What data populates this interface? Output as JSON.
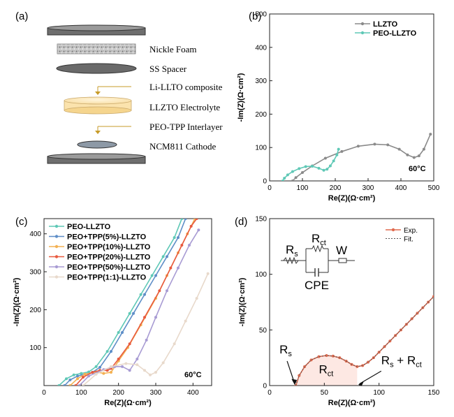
{
  "panel_labels": {
    "a": "(a)",
    "b": "(b)",
    "c": "(c)",
    "d": "(d)"
  },
  "schematic": {
    "layers": [
      {
        "label": "Nickle Foam"
      },
      {
        "label": "SS Spacer"
      },
      {
        "label": "Li-LLTO composite"
      },
      {
        "label": "LLZTO Electrolyte"
      },
      {
        "label": "PEO-TPP Interlayer"
      },
      {
        "label": "NCM811 Cathode"
      }
    ]
  },
  "chart_data": [
    {
      "panel": "(b)",
      "type": "line",
      "xlabel": "Re(Z)(Ω·cm²)",
      "ylabel": "-Im(Z)(Ω·cm²)",
      "xlim": [
        0,
        500
      ],
      "ylim": [
        0,
        500
      ],
      "xticks": [
        0,
        100,
        200,
        300,
        400,
        500
      ],
      "yticks": [
        0,
        100,
        200,
        300,
        400,
        500
      ],
      "legend_position": "top-right",
      "annotation": "60°C",
      "series": [
        {
          "name": "LLZTO",
          "color": "#8a8a8a",
          "x": [
            70,
            80,
            100,
            130,
            170,
            220,
            270,
            320,
            360,
            395,
            420,
            440,
            455,
            470,
            490
          ],
          "y": [
            0,
            10,
            25,
            45,
            68,
            88,
            104,
            110,
            108,
            95,
            78,
            70,
            75,
            95,
            140
          ]
        },
        {
          "name": "PEO-LLZTO",
          "color": "#5fc8b6",
          "x": [
            40,
            45,
            55,
            70,
            90,
            110,
            130,
            150,
            165,
            175,
            185,
            195,
            205,
            210
          ],
          "y": [
            0,
            8,
            18,
            28,
            37,
            43,
            44,
            38,
            32,
            35,
            45,
            60,
            78,
            95
          ]
        }
      ]
    },
    {
      "panel": "(c)",
      "type": "line",
      "xlabel": "Re(Z)(Ω·cm²)",
      "ylabel": "-Im(Z)(Ω·cm²)",
      "xlim": [
        0,
        450
      ],
      "ylim": [
        0,
        440
      ],
      "xticks": [
        0,
        100,
        200,
        300,
        400
      ],
      "yticks": [
        100,
        200,
        300,
        400
      ],
      "legend_position": "top-left",
      "annotation": "60°C",
      "series": [
        {
          "name": "PEO-LLZTO",
          "color": "#5fc8b6",
          "x": [
            40,
            60,
            80,
            100,
            120,
            140,
            170,
            200,
            230,
            260,
            290,
            320,
            350,
            370
          ],
          "y": [
            0,
            18,
            28,
            32,
            36,
            50,
            90,
            140,
            190,
            240,
            290,
            340,
            390,
            440
          ]
        },
        {
          "name": "PEO+TPP(5%)-LLZTO",
          "color": "#5e8ec7",
          "x": [
            55,
            70,
            90,
            110,
            130,
            150,
            180,
            210,
            240,
            270,
            300,
            330,
            360,
            380
          ],
          "y": [
            0,
            15,
            25,
            30,
            35,
            48,
            90,
            140,
            190,
            240,
            290,
            340,
            390,
            440
          ]
        },
        {
          "name": "PEO+TPP(10%)-LLZTO",
          "color": "#f3b153",
          "x": [
            70,
            90,
            110,
            140,
            160,
            180,
            200,
            225,
            260,
            300,
            330,
            360,
            385,
            405
          ],
          "y": [
            0,
            18,
            30,
            36,
            32,
            35,
            65,
            100,
            160,
            230,
            290,
            350,
            400,
            440
          ]
        },
        {
          "name": "PEO+TPP(20%)-LLZTO",
          "color": "#e85a3f",
          "x": [
            85,
            105,
            130,
            150,
            170,
            180,
            200,
            230,
            270,
            310,
            340,
            370,
            395,
            410
          ],
          "y": [
            0,
            22,
            35,
            40,
            40,
            45,
            70,
            110,
            180,
            250,
            310,
            370,
            420,
            440
          ]
        },
        {
          "name": "PEO+TPP(50%)-LLZTO",
          "color": "#a89bd3",
          "x": [
            95,
            120,
            160,
            190,
            210,
            230,
            250,
            275,
            300,
            330,
            360,
            390,
            415
          ],
          "y": [
            0,
            25,
            42,
            50,
            50,
            40,
            70,
            120,
            180,
            250,
            310,
            370,
            410
          ]
        },
        {
          "name": "PEO+TPP(1:1)-LLZTO",
          "color": "#e8d9cb",
          "x": [
            105,
            140,
            180,
            220,
            250,
            270,
            285,
            300,
            320,
            350,
            380,
            410,
            440
          ],
          "y": [
            0,
            30,
            50,
            58,
            55,
            40,
            28,
            35,
            60,
            110,
            170,
            230,
            295
          ]
        }
      ]
    },
    {
      "panel": "(d)",
      "type": "line",
      "xlabel": "Re(Z)(Ω·cm²)",
      "ylabel": "-Im(Z)(Ω·cm²)",
      "xlim": [
        0,
        150
      ],
      "ylim": [
        0,
        150
      ],
      "xticks": [
        0,
        50,
        100,
        150
      ],
      "yticks": [
        0,
        50,
        100,
        150
      ],
      "legend_position": "top-right",
      "circuit": {
        "rs": "R",
        "rs_sub": "s",
        "rct": "R",
        "rct_sub": "ct",
        "w": "W",
        "cpe": "CPE"
      },
      "annotations": {
        "rs_main": "R",
        "rs_sub": "s",
        "rct_main": "R",
        "rct_sub": "ct",
        "sum_main1": "R",
        "sum_sub1": "s",
        "sum_plus": " + R",
        "sum_sub2": "ct"
      },
      "series": [
        {
          "name": "Exp.",
          "color": "#e06a4e",
          "x": [
            24,
            27,
            32,
            38,
            45,
            52,
            58,
            64,
            70,
            75,
            80,
            85,
            90,
            95,
            100,
            105,
            110,
            115,
            120,
            125,
            130,
            135,
            140,
            145,
            150
          ],
          "y": [
            0,
            9,
            17,
            23,
            26,
            27,
            26.5,
            25,
            22,
            19,
            17,
            18,
            21,
            25,
            30,
            35,
            40,
            45,
            50,
            55,
            60,
            65,
            70,
            75,
            80
          ]
        },
        {
          "name": "Fit.",
          "color": "#555555",
          "x": [
            24,
            27,
            32,
            38,
            45,
            52,
            58,
            64,
            70,
            75,
            80,
            85,
            90,
            95,
            100,
            105,
            110,
            115,
            120,
            125,
            130,
            135,
            140,
            145,
            150
          ],
          "y": [
            0,
            9,
            17,
            23,
            26,
            27,
            26.5,
            25,
            22,
            19,
            17,
            18,
            21,
            25,
            30,
            35,
            40,
            45,
            50,
            55,
            60,
            65,
            70,
            75,
            80
          ]
        }
      ]
    }
  ]
}
